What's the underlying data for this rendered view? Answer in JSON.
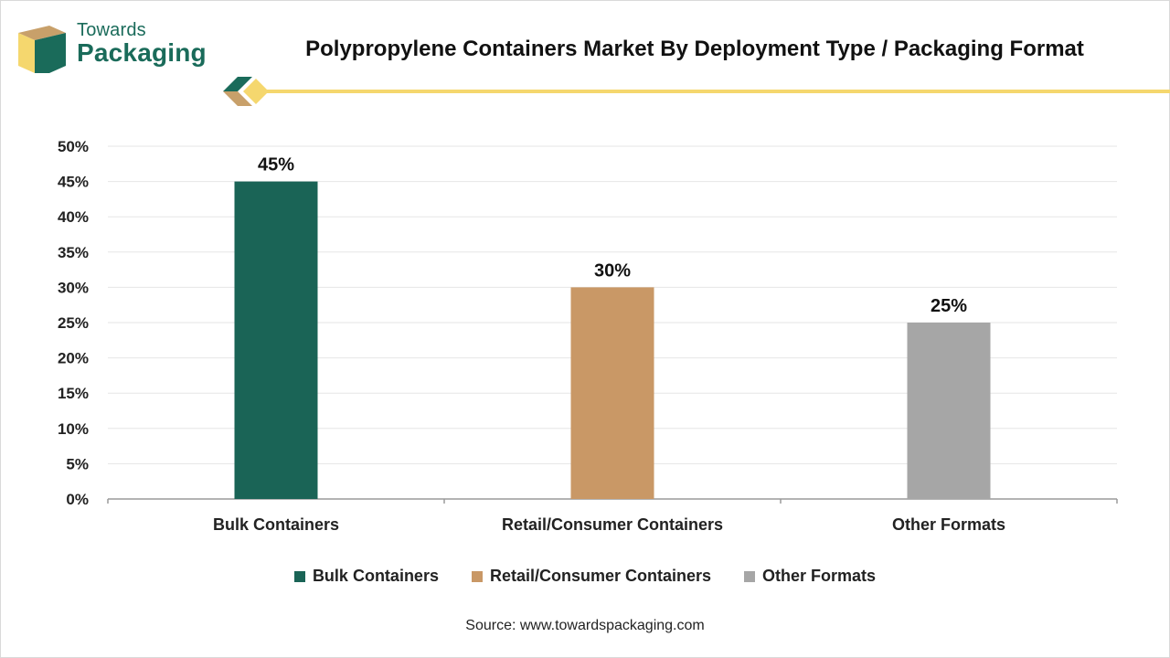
{
  "brand": {
    "name_top": "Towards",
    "name_bottom": "Packaging",
    "colors": {
      "teal": "#1a6b5a",
      "tan": "#c8a06a",
      "yellow": "#f5d76e",
      "divider": "#f5d76e"
    }
  },
  "title": "Polypropylene Containers Market By Deployment Type / Packaging Format",
  "source": "Source: www.towardspackaging.com",
  "chart_data": {
    "type": "bar",
    "title": "Polypropylene Containers Market By Deployment Type / Packaging Format",
    "categories": [
      "Bulk Containers",
      "Retail/Consumer Containers",
      "Other Formats"
    ],
    "values": [
      45,
      30,
      25
    ],
    "data_labels": [
      "45%",
      "30%",
      "25%"
    ],
    "colors": [
      "#1a6456",
      "#c99866",
      "#a6a6a6"
    ],
    "ylim": [
      0,
      50
    ],
    "yticks": [
      0,
      5,
      10,
      15,
      20,
      25,
      30,
      35,
      40,
      45,
      50
    ],
    "ytick_format": "{v}%",
    "xlabel": "",
    "ylabel": "",
    "grid": true,
    "legend": {
      "placement": "bottom",
      "entries": [
        "Bulk Containers",
        "Retail/Consumer Containers",
        "Other Formats"
      ]
    }
  }
}
